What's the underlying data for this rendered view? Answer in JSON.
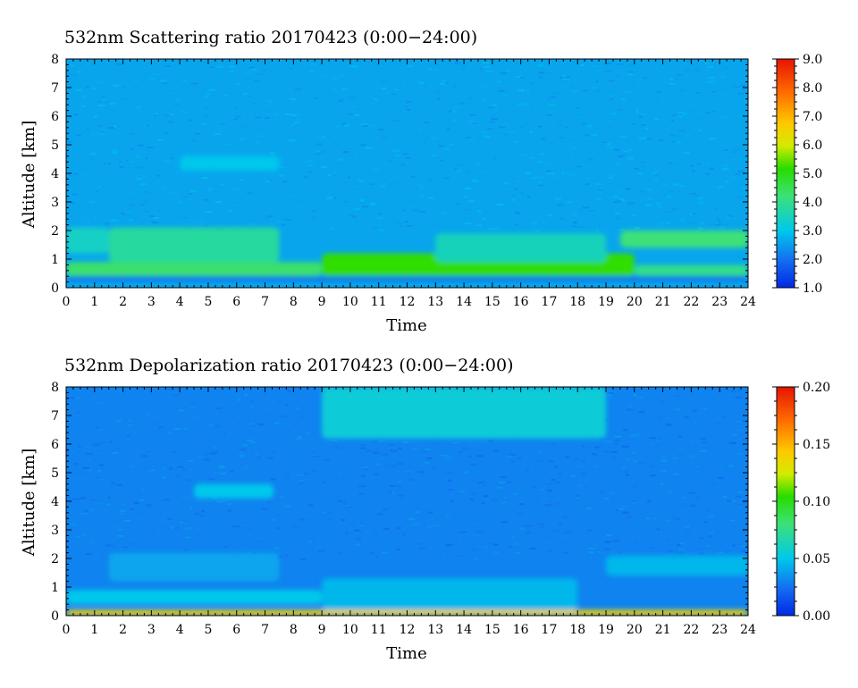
{
  "chart_data": [
    {
      "type": "heatmap",
      "title": "532nm Scattering ratio  20170423 (0:00−24:00)",
      "xlabel": "Time",
      "ylabel": "Altitude [km]",
      "xlim": [
        0,
        24
      ],
      "ylim": [
        0,
        8
      ],
      "x_ticks": [
        "0",
        "1",
        "2",
        "3",
        "4",
        "5",
        "6",
        "7",
        "8",
        "9",
        "10",
        "11",
        "12",
        "13",
        "14",
        "15",
        "16",
        "17",
        "18",
        "19",
        "20",
        "21",
        "22",
        "23",
        "24"
      ],
      "y_ticks": [
        "0",
        "1",
        "2",
        "3",
        "4",
        "5",
        "6",
        "7",
        "8"
      ],
      "colorbar": {
        "range": [
          1.0,
          9.0
        ],
        "ticks": [
          "1.0",
          "2.0",
          "3.0",
          "4.0",
          "5.0",
          "6.0",
          "7.0",
          "8.0",
          "9.0"
        ]
      },
      "background_value": 2.6,
      "features": [
        {
          "kind": "layer",
          "x_range": [
            0,
            9
          ],
          "alt_range": [
            0.4,
            0.9
          ],
          "value": 4.3
        },
        {
          "kind": "layer",
          "x_range": [
            9,
            20
          ],
          "alt_range": [
            0.4,
            1.2
          ],
          "value": 5.2
        },
        {
          "kind": "layer",
          "x_range": [
            20,
            24
          ],
          "alt_range": [
            0.4,
            0.8
          ],
          "value": 4.0
        },
        {
          "kind": "layer",
          "x_range": [
            1.5,
            7.5
          ],
          "alt_range": [
            0.9,
            2.1
          ],
          "value": 3.8
        },
        {
          "kind": "layer",
          "x_range": [
            13,
            19
          ],
          "alt_range": [
            0.9,
            1.9
          ],
          "value": 3.5
        },
        {
          "kind": "layer",
          "x_range": [
            19.5,
            24
          ],
          "alt_range": [
            1.4,
            2.0
          ],
          "value": 4.2
        },
        {
          "kind": "layer",
          "x_range": [
            0,
            1.5
          ],
          "alt_range": [
            1.2,
            2.1
          ],
          "value": 3.4
        },
        {
          "kind": "layer",
          "x_range": [
            4,
            7.5
          ],
          "alt_range": [
            4.1,
            4.6
          ],
          "value": 3.0
        },
        {
          "kind": "layer",
          "x_range": [
            0,
            24
          ],
          "alt_range": [
            0.25,
            0.4
          ],
          "value": 1.8
        }
      ]
    },
    {
      "type": "heatmap",
      "title": "532nm Depolarization ratio  20170423 (0:00−24:00)",
      "xlabel": "Time",
      "ylabel": "Altitude [km]",
      "xlim": [
        0,
        24
      ],
      "ylim": [
        0,
        8
      ],
      "x_ticks": [
        "0",
        "1",
        "2",
        "3",
        "4",
        "5",
        "6",
        "7",
        "8",
        "9",
        "10",
        "11",
        "12",
        "13",
        "14",
        "15",
        "16",
        "17",
        "18",
        "19",
        "20",
        "21",
        "22",
        "23",
        "24"
      ],
      "y_ticks": [
        "0",
        "1",
        "2",
        "3",
        "4",
        "5",
        "6",
        "7",
        "8"
      ],
      "colorbar": {
        "range": [
          0.0,
          0.2
        ],
        "ticks": [
          "0.00",
          "0.05",
          "0.10",
          "0.15",
          "0.20"
        ]
      },
      "background_value": 0.03,
      "features": [
        {
          "kind": "layer",
          "x_range": [
            0,
            24
          ],
          "alt_range": [
            0.0,
            0.2
          ],
          "value": 0.14
        },
        {
          "kind": "layer",
          "x_range": [
            0,
            9
          ],
          "alt_range": [
            0.4,
            0.9
          ],
          "value": 0.05
        },
        {
          "kind": "layer",
          "x_range": [
            1.5,
            7.5
          ],
          "alt_range": [
            1.2,
            2.2
          ],
          "value": 0.04
        },
        {
          "kind": "layer",
          "x_range": [
            9,
            18
          ],
          "alt_range": [
            0.2,
            1.3
          ],
          "value": 0.045
        },
        {
          "kind": "layer",
          "x_range": [
            19,
            24
          ],
          "alt_range": [
            1.4,
            2.1
          ],
          "value": 0.045
        },
        {
          "kind": "layer",
          "x_range": [
            4.5,
            7.3
          ],
          "alt_range": [
            4.1,
            4.6
          ],
          "value": 0.05
        },
        {
          "kind": "layer",
          "x_range": [
            9,
            19
          ],
          "alt_range": [
            6.2,
            8.0
          ],
          "value": 0.055
        }
      ]
    }
  ]
}
